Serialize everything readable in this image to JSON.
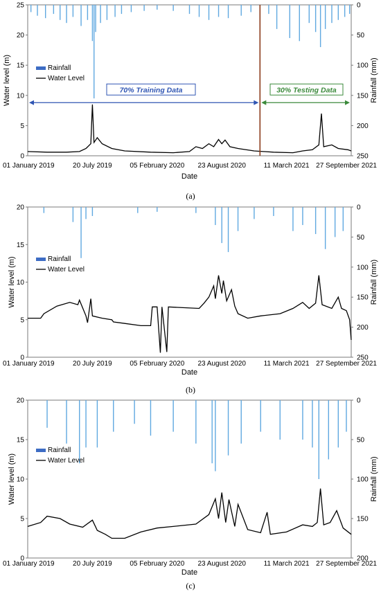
{
  "panels": [
    {
      "caption": "(a)",
      "chart_data": {
        "type": "line",
        "xlabel": "Date",
        "ylabel_left": "Water level (m)",
        "ylabel_right": "Rainfall (mm)",
        "x_ticks": [
          "01 January 2019",
          "20 July 2019",
          "05 February 2020",
          "23 August 2020",
          "11 March 2021",
          "27 September 2021"
        ],
        "x_range_days": [
          0,
          1000
        ],
        "ylim_left": [
          0,
          25
        ],
        "yticks_left": [
          0,
          5,
          10,
          15,
          20,
          25
        ],
        "ylim_right": [
          250,
          0
        ],
        "yticks_right": [
          0,
          50,
          100,
          150,
          200,
          250
        ],
        "legend": [
          "Rainfall",
          "Water Level"
        ],
        "annotations": {
          "training": "70% Training Data",
          "testing": "30% Testing Data",
          "split_day": 718
        },
        "colors": {
          "rain": "#5fa8e0",
          "level": "#000000",
          "legend_bar": "#3d6cc4",
          "train": "#2f55b3",
          "test": "#3b8a3b",
          "split": "#8b3a1a"
        },
        "series": [
          {
            "name": "Water Level",
            "points": [
              [
                0,
                0.7
              ],
              [
                60,
                0.6
              ],
              [
                120,
                0.6
              ],
              [
                160,
                0.7
              ],
              [
                180,
                1.2
              ],
              [
                195,
                2.0
              ],
              [
                200,
                8.5
              ],
              [
                205,
                2.2
              ],
              [
                215,
                3.0
              ],
              [
                230,
                2.0
              ],
              [
                260,
                1.2
              ],
              [
                300,
                0.8
              ],
              [
                380,
                0.6
              ],
              [
                450,
                0.5
              ],
              [
                500,
                0.7
              ],
              [
                520,
                1.5
              ],
              [
                540,
                1.2
              ],
              [
                560,
                2.0
              ],
              [
                575,
                1.5
              ],
              [
                590,
                2.7
              ],
              [
                600,
                2.0
              ],
              [
                610,
                2.6
              ],
              [
                625,
                1.5
              ],
              [
                650,
                1.2
              ],
              [
                700,
                0.8
              ],
              [
                760,
                0.6
              ],
              [
                820,
                0.5
              ],
              [
                850,
                0.8
              ],
              [
                880,
                1.0
              ],
              [
                900,
                1.8
              ],
              [
                908,
                7.0
              ],
              [
                915,
                1.5
              ],
              [
                940,
                1.8
              ],
              [
                960,
                1.2
              ],
              [
                990,
                1.0
              ],
              [
                1000,
                0.8
              ]
            ]
          },
          {
            "name": "Rainfall",
            "points": [
              [
                10,
                12
              ],
              [
                30,
                18
              ],
              [
                55,
                22
              ],
              [
                80,
                15
              ],
              [
                100,
                25
              ],
              [
                120,
                30
              ],
              [
                140,
                20
              ],
              [
                165,
                35
              ],
              [
                185,
                25
              ],
              [
                200,
                60
              ],
              [
                205,
                155
              ],
              [
                210,
                45
              ],
              [
                225,
                30
              ],
              [
                245,
                25
              ],
              [
                270,
                20
              ],
              [
                290,
                15
              ],
              [
                320,
                12
              ],
              [
                360,
                10
              ],
              [
                400,
                8
              ],
              [
                450,
                10
              ],
              [
                500,
                15
              ],
              [
                530,
                20
              ],
              [
                560,
                25
              ],
              [
                590,
                20
              ],
              [
                620,
                22
              ],
              [
                660,
                18
              ],
              [
                690,
                12
              ],
              [
                745,
                15
              ],
              [
                770,
                40
              ],
              [
                810,
                55
              ],
              [
                840,
                60
              ],
              [
                870,
                30
              ],
              [
                890,
                45
              ],
              [
                905,
                70
              ],
              [
                920,
                40
              ],
              [
                940,
                30
              ],
              [
                960,
                25
              ],
              [
                980,
                20
              ],
              [
                995,
                15
              ]
            ]
          }
        ]
      }
    },
    {
      "caption": "(b)",
      "chart_data": {
        "type": "line",
        "xlabel": "Date",
        "ylabel_left": "Water level (m)",
        "ylabel_right": "Rainfall (mm)",
        "x_ticks": [
          "01 January 2019",
          "20 July 2019",
          "05 February 2020",
          "23 August 2020",
          "11 March 2021",
          "27 September 2021"
        ],
        "x_range_days": [
          0,
          1000
        ],
        "ylim_left": [
          0,
          20
        ],
        "yticks_left": [
          0,
          5,
          10,
          15,
          20
        ],
        "ylim_right": [
          250,
          0
        ],
        "yticks_right": [
          0,
          50,
          100,
          150,
          200,
          250
        ],
        "legend": [
          "Rainfall",
          "Water Level"
        ],
        "series": [
          {
            "name": "Water Level",
            "points": [
              [
                0,
                5.2
              ],
              [
                40,
                5.2
              ],
              [
                50,
                5.8
              ],
              [
                90,
                6.8
              ],
              [
                130,
                7.3
              ],
              [
                155,
                7.0
              ],
              [
                160,
                7.6
              ],
              [
                180,
                5.5
              ],
              [
                185,
                4.6
              ],
              [
                195,
                7.8
              ],
              [
                200,
                5.5
              ],
              [
                230,
                5.2
              ],
              [
                260,
                5.0
              ],
              [
                265,
                4.7
              ],
              [
                300,
                4.5
              ],
              [
                350,
                4.2
              ],
              [
                380,
                4.2
              ],
              [
                385,
                6.7
              ],
              [
                400,
                6.7
              ],
              [
                410,
                0.6
              ],
              [
                415,
                6.7
              ],
              [
                430,
                0.7
              ],
              [
                435,
                6.7
              ],
              [
                480,
                6.6
              ],
              [
                530,
                6.5
              ],
              [
                545,
                7.2
              ],
              [
                560,
                8.0
              ],
              [
                575,
                9.5
              ],
              [
                580,
                7.8
              ],
              [
                590,
                10.9
              ],
              [
                600,
                8.5
              ],
              [
                605,
                10.2
              ],
              [
                615,
                7.5
              ],
              [
                630,
                9.0
              ],
              [
                640,
                6.8
              ],
              [
                650,
                5.8
              ],
              [
                680,
                5.2
              ],
              [
                720,
                5.5
              ],
              [
                780,
                5.8
              ],
              [
                820,
                6.5
              ],
              [
                850,
                7.3
              ],
              [
                870,
                6.5
              ],
              [
                890,
                7.2
              ],
              [
                900,
                10.9
              ],
              [
                910,
                7.0
              ],
              [
                940,
                6.5
              ],
              [
                960,
                8.0
              ],
              [
                970,
                6.5
              ],
              [
                985,
                6.2
              ],
              [
                995,
                5.0
              ],
              [
                1000,
                2.3
              ]
            ]
          },
          {
            "name": "Rainfall",
            "points": [
              [
                50,
                10
              ],
              [
                140,
                25
              ],
              [
                165,
                85
              ],
              [
                180,
                20
              ],
              [
                200,
                15
              ],
              [
                340,
                10
              ],
              [
                400,
                8
              ],
              [
                520,
                10
              ],
              [
                580,
                30
              ],
              [
                600,
                60
              ],
              [
                620,
                75
              ],
              [
                650,
                40
              ],
              [
                700,
                20
              ],
              [
                760,
                15
              ],
              [
                820,
                40
              ],
              [
                850,
                30
              ],
              [
                890,
                45
              ],
              [
                920,
                70
              ],
              [
                950,
                50
              ],
              [
                975,
                40
              ]
            ]
          }
        ]
      }
    },
    {
      "caption": "(c)",
      "chart_data": {
        "type": "line",
        "xlabel": "Date",
        "ylabel_left": "Water level (m)",
        "ylabel_right": "Rainfall (mm)",
        "x_ticks": [
          "01 January 2019",
          "20 July 2019",
          "05 February 2020",
          "23 August 2020",
          "11 March 2021",
          "27 September 2021"
        ],
        "x_range_days": [
          0,
          1000
        ],
        "ylim_left": [
          0,
          20
        ],
        "yticks_left": [
          0,
          5,
          10,
          15,
          20
        ],
        "ylim_right": [
          200,
          0
        ],
        "yticks_right": [
          0,
          50,
          100,
          150,
          200
        ],
        "legend": [
          "Rainfall",
          "Water Level"
        ],
        "series": [
          {
            "name": "Water Level",
            "points": [
              [
                0,
                4.0
              ],
              [
                40,
                4.5
              ],
              [
                60,
                5.3
              ],
              [
                100,
                5.0
              ],
              [
                130,
                4.3
              ],
              [
                170,
                3.9
              ],
              [
                200,
                4.8
              ],
              [
                215,
                3.5
              ],
              [
                240,
                3.0
              ],
              [
                260,
                2.5
              ],
              [
                300,
                2.5
              ],
              [
                350,
                3.3
              ],
              [
                400,
                3.8
              ],
              [
                450,
                4.0
              ],
              [
                520,
                4.3
              ],
              [
                560,
                5.5
              ],
              [
                580,
                7.5
              ],
              [
                590,
                5.0
              ],
              [
                600,
                8.3
              ],
              [
                612,
                4.5
              ],
              [
                622,
                7.4
              ],
              [
                640,
                4.0
              ],
              [
                650,
                6.8
              ],
              [
                680,
                3.6
              ],
              [
                720,
                3.2
              ],
              [
                740,
                5.8
              ],
              [
                750,
                3.0
              ],
              [
                800,
                3.3
              ],
              [
                850,
                4.2
              ],
              [
                880,
                4.0
              ],
              [
                895,
                4.5
              ],
              [
                905,
                8.8
              ],
              [
                915,
                4.2
              ],
              [
                935,
                4.5
              ],
              [
                955,
                6.0
              ],
              [
                975,
                3.8
              ],
              [
                1000,
                3.0
              ]
            ]
          },
          {
            "name": "Rainfall",
            "points": [
              [
                60,
                35
              ],
              [
                120,
                55
              ],
              [
                160,
                80
              ],
              [
                180,
                60
              ],
              [
                215,
                60
              ],
              [
                265,
                40
              ],
              [
                330,
                30
              ],
              [
                380,
                45
              ],
              [
                450,
                40
              ],
              [
                520,
                55
              ],
              [
                570,
                80
              ],
              [
                580,
                90
              ],
              [
                620,
                70
              ],
              [
                660,
                55
              ],
              [
                720,
                40
              ],
              [
                780,
                50
              ],
              [
                850,
                50
              ],
              [
                880,
                60
              ],
              [
                900,
                100
              ],
              [
                930,
                75
              ],
              [
                960,
                60
              ],
              [
                985,
                40
              ]
            ]
          }
        ]
      }
    }
  ]
}
